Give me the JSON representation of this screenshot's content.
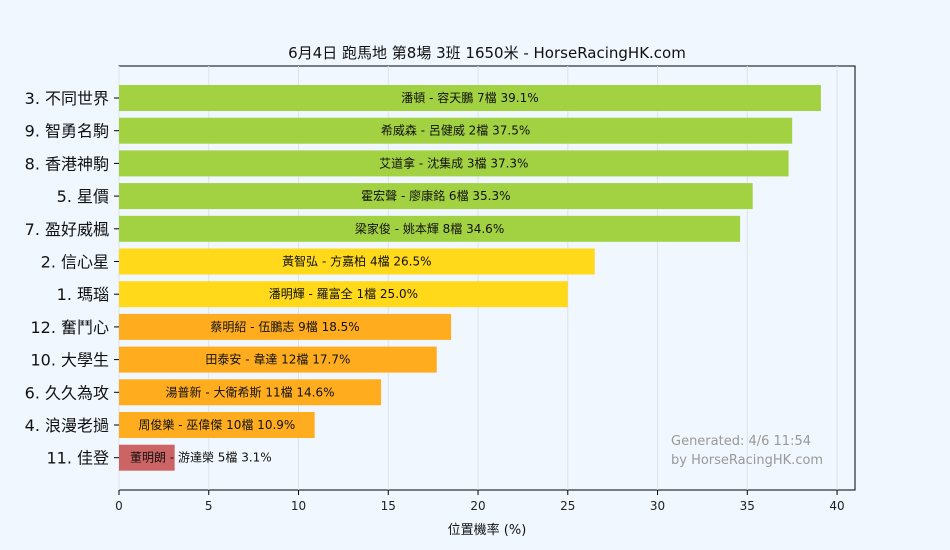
{
  "chart_data": {
    "type": "bar",
    "orientation": "horizontal",
    "title": "6月4日  跑馬地  第8場  3班  1650米 - HorseRacingHK.com",
    "xlabel": "位置機率 (%)",
    "xlim": [
      0,
      41
    ],
    "xticks": [
      0,
      5,
      10,
      15,
      20,
      25,
      30,
      35,
      40
    ],
    "grid": "vertical",
    "watermark": [
      "Generated: 4/6 11:54",
      "by HorseRacingHK.com"
    ],
    "categories": [
      "3. 不同世界",
      "9. 智勇名駒",
      "8. 香港神駒",
      "5. 星價",
      "7. 盈好威楓",
      "2. 信心星",
      "1. 瑪瑙",
      "12. 奮鬥心",
      "10. 大學生",
      "6. 久久為攻",
      "4. 浪漫老撾",
      "11. 佳登"
    ],
    "values": [
      39.1,
      37.5,
      37.3,
      35.3,
      34.6,
      26.5,
      25.0,
      18.5,
      17.7,
      14.6,
      10.9,
      3.1
    ],
    "bar_labels": [
      "潘頓 - 容天鵬 7檔  39.1%",
      "希威森 - 呂健威 2檔  37.5%",
      "艾道拿 - 沈集成 3檔  37.3%",
      "霍宏聲 - 廖康銘 6檔  35.3%",
      "梁家俊 - 姚本輝 8檔  34.6%",
      "黃智弘 - 方嘉柏 4檔  26.5%",
      "潘明輝 - 羅富全 1檔  25.0%",
      "蔡明紹 - 伍鵬志 9檔  18.5%",
      "田泰安 - 韋達 12檔  17.7%",
      "湯普新 - 大衛希斯 11檔  14.6%",
      "周俊樂 - 巫偉傑 10檔  10.9%",
      "董明朗 - 游達榮 5檔  3.1%"
    ],
    "bar_colors": [
      "#a2d142",
      "#a2d142",
      "#a2d142",
      "#a2d142",
      "#a2d142",
      "#ffd91a",
      "#ffd91a",
      "#ffad1f",
      "#ffad1f",
      "#ffad1f",
      "#ffad1f",
      "#cd6464"
    ]
  }
}
